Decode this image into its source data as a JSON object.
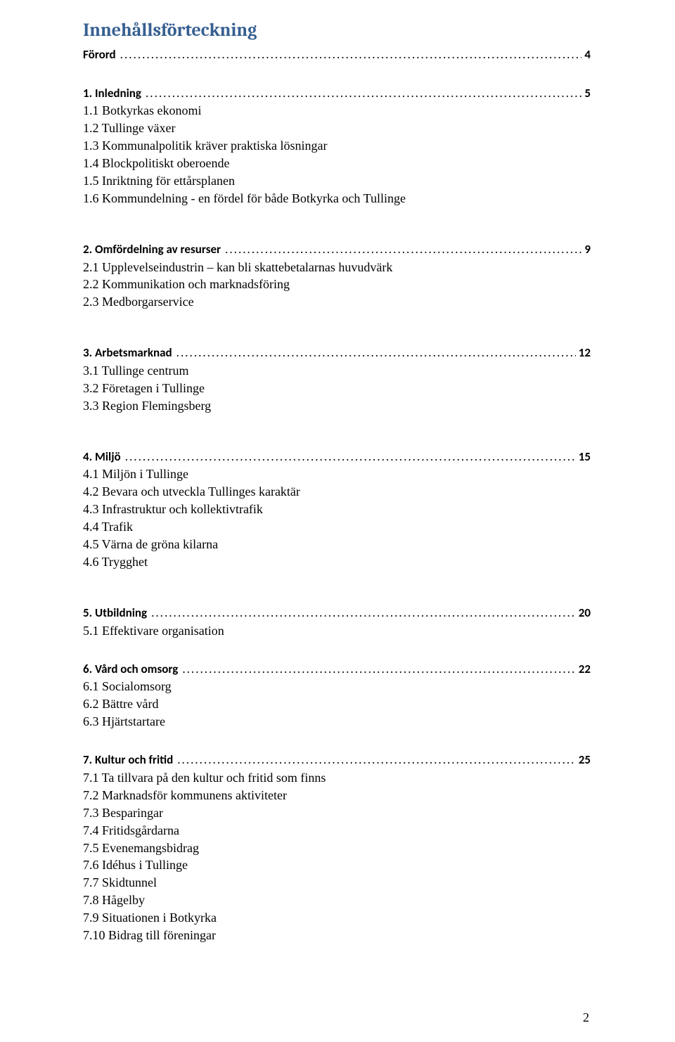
{
  "title": "Innehållsförteckning",
  "page_number": "2",
  "colors": {
    "heading": "#365f91",
    "text": "#000000",
    "background": "#ffffff"
  },
  "fonts": {
    "heading_family": "Cambria",
    "toc_family": "Calibri",
    "body_family": "Times New Roman",
    "heading_size_pt": 20,
    "toc_size_pt": 13,
    "body_size_pt": 13
  },
  "sections": [
    {
      "heading": "Förord",
      "page": " 4",
      "items": [],
      "gap_after": "block-gap"
    },
    {
      "heading": "1. Inledning",
      "page": " 5",
      "items": [
        "1.1 Botkyrkas ekonomi",
        "1.2 Tullinge växer",
        "1.3 Kommunalpolitik kräver praktiska lösningar",
        "1.4 Blockpolitiskt oberoende",
        "1.5 Inriktning för ettårsplanen",
        "1.6 Kommundelning - en fördel för både Botkyrka och Tullinge"
      ],
      "gap_after": "big-gap"
    },
    {
      "heading": "2. Omfördelning av resurser",
      "page": " 9",
      "items": [
        "2.1 Upplevelseindustrin – kan bli skattebetalarnas huvudvärk",
        "2.2 Kommunikation och marknadsföring",
        "2.3 Medborgarservice"
      ],
      "gap_after": "big-gap"
    },
    {
      "heading": "3. Arbetsmarknad",
      "page": "12",
      "items": [
        "3.1 Tullinge centrum",
        "3.2 Företagen i Tullinge",
        "3.3 Region Flemingsberg"
      ],
      "gap_after": "big-gap"
    },
    {
      "heading": "4. Miljö",
      "page": "15",
      "items": [
        "4.1 Miljön i Tullinge",
        "4.2 Bevara och utveckla Tullinges karaktär",
        "4.3 Infrastruktur och kollektivtrafik",
        "4.4 Trafik",
        "4.5 Värna de gröna kilarna",
        "4.6 Trygghet"
      ],
      "gap_after": "big-gap"
    },
    {
      "heading": "5. Utbildning",
      "page": "20",
      "items": [
        "5.1 Effektivare organisation"
      ],
      "gap_after": "block-gap"
    },
    {
      "heading": "6. Vård och omsorg",
      "page": "22",
      "items": [
        "6.1 Socialomsorg",
        "6.2 Bättre vård",
        "6.3 Hjärtstartare"
      ],
      "gap_after": "block-gap"
    },
    {
      "heading": "7. Kultur och fritid",
      "page": "25",
      "items": [
        "7.1 Ta tillvara på den kultur och fritid som finns",
        "7.2 Marknadsför kommunens aktiviteter",
        "7.3 Besparingar",
        "7.4 Fritidsgårdarna",
        "7.5 Evenemangsbidrag",
        "7.6 Idéhus i Tullinge",
        "7.7 Skidtunnel",
        "7.8 Hågelby",
        "7.9 Situationen i Botkyrka",
        "7.10 Bidrag till föreningar"
      ],
      "gap_after": "small-gap"
    }
  ]
}
